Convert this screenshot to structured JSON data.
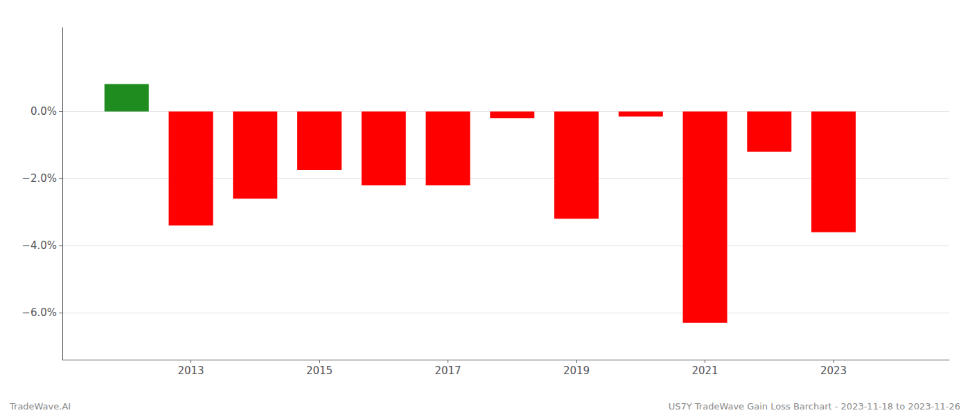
{
  "chart_data": {
    "type": "bar",
    "x": [
      2012,
      2013,
      2014,
      2015,
      2016,
      2017,
      2018,
      2019,
      2020,
      2021,
      2022,
      2023
    ],
    "values": [
      0.0082,
      -0.034,
      -0.026,
      -0.0175,
      -0.022,
      -0.022,
      -0.002,
      -0.032,
      -0.0015,
      -0.063,
      -0.012,
      -0.036
    ],
    "colors": [
      "#1e8c1e",
      "#ff0000",
      "#ff0000",
      "#ff0000",
      "#ff0000",
      "#ff0000",
      "#ff0000",
      "#ff0000",
      "#ff0000",
      "#ff0000",
      "#ff0000",
      "#ff0000"
    ],
    "xlim": [
      2011,
      2024.8
    ],
    "xticks": [
      2013,
      2015,
      2017,
      2019,
      2021,
      2023
    ],
    "ylim": [
      -0.074,
      0.025
    ],
    "yticks": [
      {
        "value": 0.0,
        "label": "0.0%"
      },
      {
        "value": -0.02,
        "label": "−2.0%"
      },
      {
        "value": -0.04,
        "label": "−4.0%"
      },
      {
        "value": -0.06,
        "label": "−6.0%"
      }
    ],
    "grid": true,
    "annotations": [
      "TradeWave.AI",
      "US7Y TradeWave Gain Loss Barchart - 2023-11-18 to 2023-11-26"
    ]
  }
}
